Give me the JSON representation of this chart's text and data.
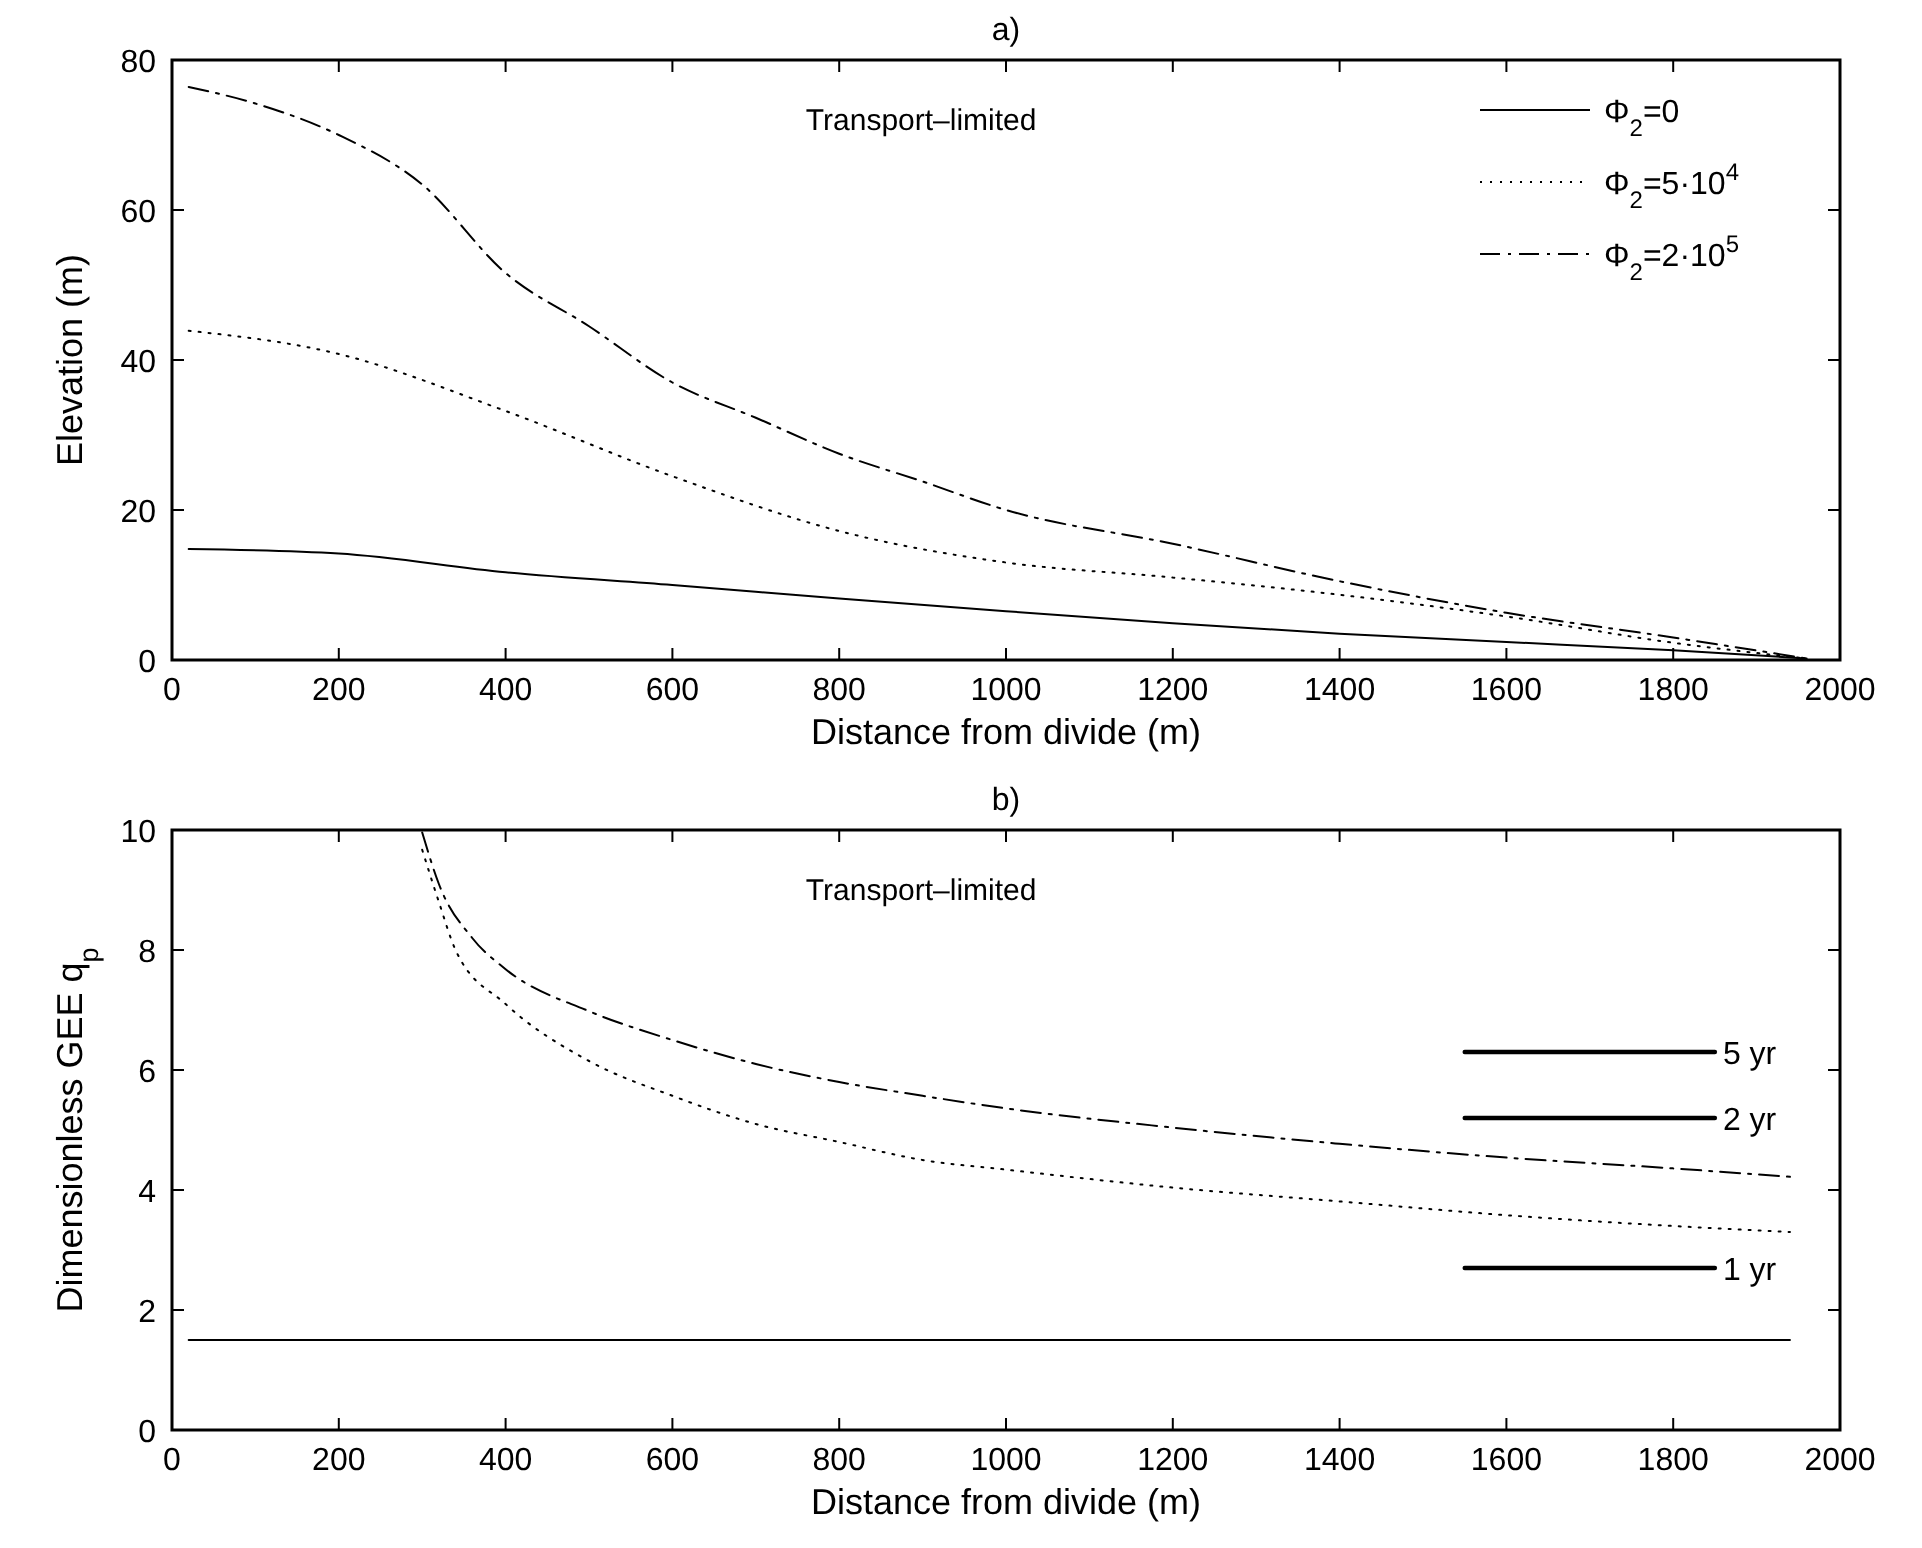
{
  "chart_data": [
    {
      "type": "line",
      "title": "a)",
      "xlabel": "Distance from divide (m)",
      "ylabel": "Elevation (m)",
      "xlim": [
        0,
        2000
      ],
      "xticks": [
        0,
        200,
        400,
        600,
        800,
        1000,
        1200,
        1400,
        1600,
        1800,
        2000
      ],
      "ylim": [
        0,
        80
      ],
      "yticks": [
        0,
        20,
        40,
        60,
        80
      ],
      "grid": false,
      "legend": "top right",
      "annotations": [
        "Transport–limited"
      ],
      "series": [
        {
          "name": "Φ$_{2}$=0",
          "color": "#000000",
          "line_style": "solid",
          "x": [
            20,
            200,
            400,
            600,
            800,
            1000,
            1200,
            1400,
            1600,
            1800,
            1960
          ],
          "values": [
            14.8,
            14.2,
            11.7,
            10.0,
            8.2,
            6.5,
            4.9,
            3.5,
            2.4,
            1.3,
            0.2
          ]
        },
        {
          "name": "Φ$_{2}$=5·10$^{4}$",
          "color": "#000000",
          "line_style": "dotted",
          "x": [
            20,
            200,
            400,
            600,
            800,
            1000,
            1200,
            1400,
            1600,
            1800,
            1960
          ],
          "values": [
            43.9,
            40.8,
            33.2,
            24.5,
            17.2,
            13.0,
            11.0,
            8.7,
            5.8,
            2.3,
            0.2
          ]
        },
        {
          "name": "Φ$_{2}$=2·10$^{5}$",
          "color": "#000000",
          "line_style": "dashdot",
          "x": [
            20,
            100,
            200,
            300,
            400,
            500,
            600,
            700,
            800,
            900,
            1000,
            1200,
            1400,
            1600,
            1800,
            1960
          ],
          "values": [
            76.4,
            74.2,
            70,
            63.4,
            51.6,
            44.5,
            37,
            32.3,
            27.5,
            23.8,
            20,
            15.5,
            10.5,
            6.3,
            3.0,
            0.2
          ]
        }
      ]
    },
    {
      "type": "line",
      "title": "b)",
      "xlabel": "Distance from divide (m)",
      "ylabel": "Dimensionless GEE q$_{p}$",
      "xlim": [
        0,
        2000
      ],
      "xticks": [
        0,
        200,
        400,
        600,
        800,
        1000,
        1200,
        1400,
        1600,
        1800,
        2000
      ],
      "ylim": [
        0,
        10
      ],
      "yticks": [
        0,
        2,
        4,
        6,
        8,
        10
      ],
      "grid": false,
      "legend": "right",
      "annotations": [
        "Transport–limited"
      ],
      "series": [
        {
          "color": "#000000",
          "line_style": "solid",
          "x": [
            20,
            1940
          ],
          "values": [
            1.5,
            1.5
          ]
        },
        {
          "color": "#000000",
          "line_style": "dotted",
          "x": [
            300,
            320,
            340,
            400,
            500,
            600,
            700,
            800,
            900,
            1000,
            1200,
            1400,
            1600,
            1800,
            1940
          ],
          "values": [
            9.67,
            8.8,
            8.0,
            7.1,
            6.15,
            5.57,
            5.1,
            4.8,
            4.5,
            4.34,
            4.04,
            3.81,
            3.58,
            3.4,
            3.3
          ]
        },
        {
          "color": "#000000",
          "line_style": "dashdot",
          "x": [
            300,
            320,
            360,
            400,
            500,
            600,
            700,
            800,
            900,
            1000,
            1200,
            1400,
            1600,
            1800,
            1940
          ],
          "values": [
            9.96,
            9.1,
            8.2,
            7.68,
            6.98,
            6.5,
            6.1,
            5.8,
            5.57,
            5.36,
            5.04,
            4.77,
            4.54,
            4.36,
            4.22
          ]
        },
        {
          "name": "5 yr",
          "color": "#000000",
          "line_style": "solid",
          "x": [
            1550,
            1850
          ],
          "values": [
            6.3,
            6.3
          ]
        },
        {
          "name": "2 yr",
          "color": "#000000",
          "line_style": "solid",
          "x": [
            1550,
            1850
          ],
          "values": [
            5.2,
            5.2
          ]
        },
        {
          "name": "1 yr",
          "color": "#000000",
          "line_style": "solid",
          "x": [
            1550,
            1850
          ],
          "values": [
            2.7,
            2.7
          ]
        }
      ]
    }
  ]
}
